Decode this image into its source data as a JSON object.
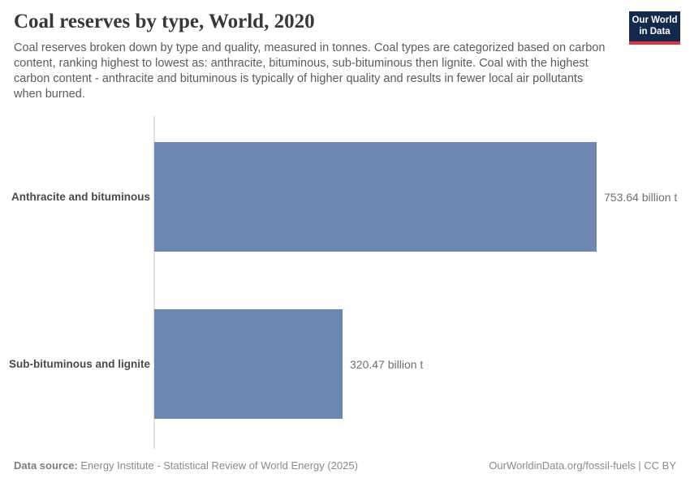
{
  "header": {
    "title": "Coal reserves by type, World, 2020",
    "subtitle": "Coal reserves broken down by type and quality, measured in tonnes. Coal types are categorized based on carbon content, ranking highest to lowest as: anthracite, bituminous, sub-bituminous then lignite. Coal with the highest carbon content - anthracite and bituminous is typically of higher quality and results in fewer local air pollutants when burned."
  },
  "logo": {
    "line1": "Our World",
    "line2": "in Data",
    "bg_color": "#14294e",
    "accent_color": "#d7383f"
  },
  "chart_data": {
    "type": "bar",
    "orientation": "horizontal",
    "title": "Coal reserves by type, World, 2020",
    "categories": [
      "Anthracite and bituminous",
      "Sub-bituminous and lignite"
    ],
    "values": [
      753.64,
      320.47
    ],
    "value_labels": [
      "753.64 billion t",
      "320.47 billion t"
    ],
    "unit": "billion t",
    "xlim": [
      0,
      753.64
    ],
    "bar_color": "#6d87b1",
    "axis_line_color": "#e2e2e2",
    "grid": false,
    "legend": false
  },
  "footer": {
    "source_label": "Data source:",
    "source_text": "Energy Institute - Statistical Review of World Energy (2025)",
    "link_text": "OurWorldinData.org/fossil-fuels | CC BY"
  }
}
